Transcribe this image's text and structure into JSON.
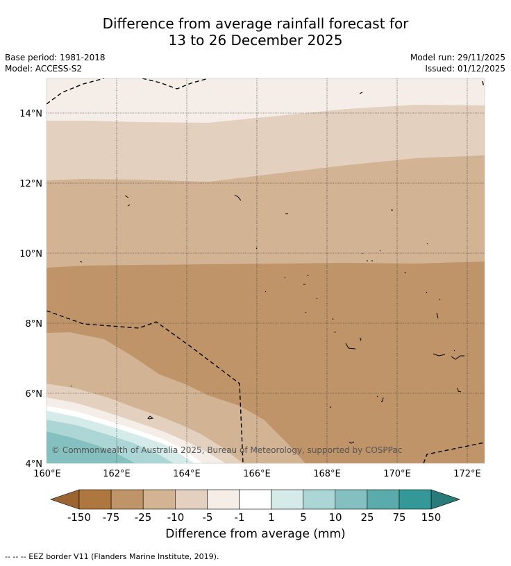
{
  "title_line1": "Difference from average rainfall forecast for",
  "title_line2": "13 to 26 December 2025",
  "base_period": "Base period: 1981-2018",
  "model": "Model: ACCESS-S2",
  "model_run": "Model run: 29/11/2025",
  "issued": "Issued: 01/12/2025",
  "copyright": "© Commonwealth of Australia 2025, Bureau of Meteorology, supported by COSPPac",
  "lat_labels": [
    "14°N",
    "12°N",
    "10°N",
    "8°N",
    "6°N",
    "4°N"
  ],
  "lon_labels": [
    "160°E",
    "162°E",
    "164°E",
    "166°E",
    "168°E",
    "170°E",
    "172°E"
  ],
  "colorbar": {
    "title": "Difference from average (mm)",
    "ticks": [
      "-150",
      "-75",
      "-25",
      "-10",
      "-5",
      "-1",
      "1",
      "5",
      "10",
      "25",
      "75",
      "150"
    ],
    "colors": [
      "#9c6430",
      "#ad773f",
      "#bf9468",
      "#d2b393",
      "#e4d0bf",
      "#f5eee8",
      "#ffffff",
      "#d4ebe9",
      "#acd6d5",
      "#84c0c0",
      "#5aabab",
      "#349898",
      "#2b7a7b"
    ]
  },
  "legend_footnote": "--  --  -- EEZ border V11 (Flanders Marine Institute, 2019)."
}
